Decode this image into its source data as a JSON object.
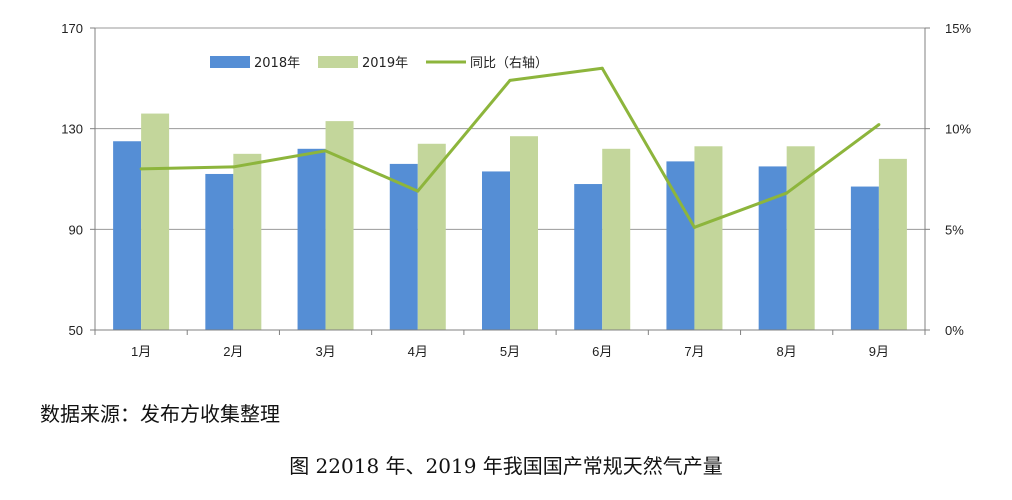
{
  "chart_data": {
    "type": "bar",
    "categories": [
      "1月",
      "2月",
      "3月",
      "4月",
      "5月",
      "6月",
      "7月",
      "8月",
      "9月"
    ],
    "series": [
      {
        "name": "2018年",
        "type": "bar",
        "axis": "left",
        "color": "#558ED5",
        "values": [
          125,
          112,
          122,
          116,
          113,
          108,
          117,
          115,
          107
        ]
      },
      {
        "name": "2019年",
        "type": "bar",
        "axis": "left",
        "color": "#C3D69B",
        "values": [
          136,
          120,
          133,
          124,
          127,
          122,
          123,
          123,
          118
        ]
      },
      {
        "name": "同比（右轴）",
        "type": "line",
        "axis": "right",
        "color": "#8DB53C",
        "values": [
          8.0,
          8.1,
          8.9,
          6.9,
          12.4,
          13.0,
          5.1,
          6.8,
          10.2
        ]
      }
    ],
    "y_left": {
      "lim": [
        50,
        170
      ],
      "ticks": [
        "50",
        "90",
        "130",
        "170"
      ],
      "tick_values": [
        50,
        90,
        130,
        170
      ]
    },
    "y_right": {
      "lim": [
        0,
        15
      ],
      "ticks": [
        "0%",
        "5%",
        "10%",
        "15%"
      ],
      "tick_values": [
        0,
        5,
        10,
        15
      ]
    },
    "grid": true,
    "legend_position": "top"
  },
  "source_text": "数据来源：发布方收集整理",
  "caption": "图 22018 年、2019 年我国国产常规天然气产量"
}
